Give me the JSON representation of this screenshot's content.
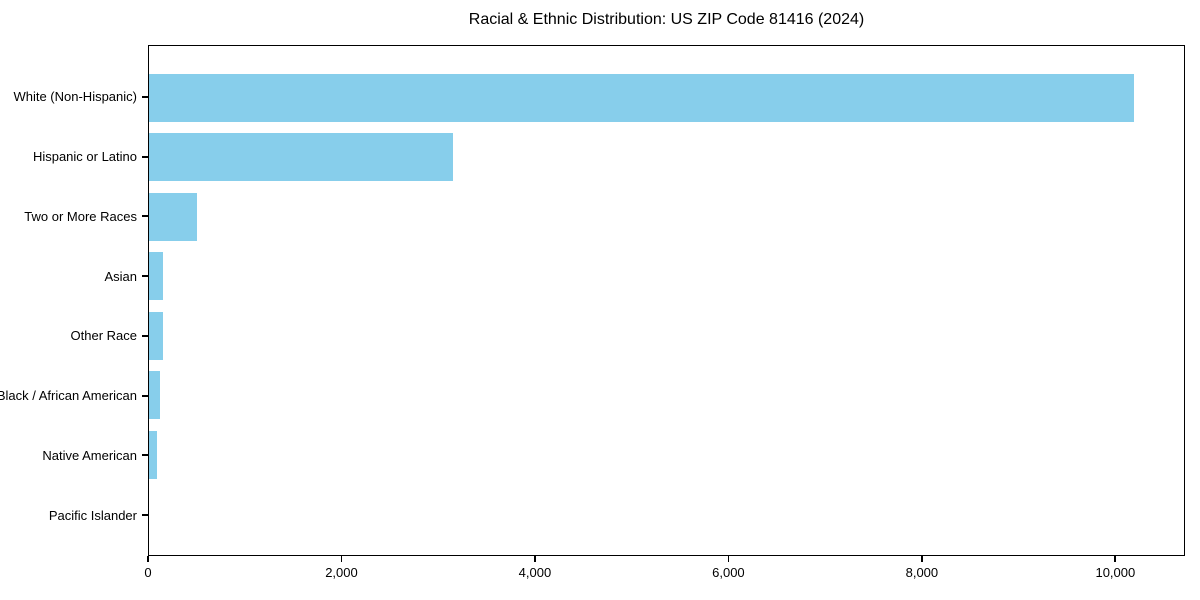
{
  "figure": {
    "background_color": "#ffffff",
    "spine_color": "#000000",
    "text_color": "#000000"
  },
  "chart_data": {
    "type": "bar",
    "orientation": "horizontal",
    "title": "Racial & Ethnic Distribution: US ZIP Code 81416 (2024)",
    "categories": [
      "White (Non-Hispanic)",
      "Hispanic or Latino",
      "Two or More Races",
      "Asian",
      "Other Race",
      "Black / African American",
      "Native American",
      "Pacific Islander"
    ],
    "values": [
      10200,
      3150,
      500,
      150,
      140,
      115,
      80,
      0
    ],
    "bar_color": "#87CEEB",
    "xlabel": "",
    "ylabel": "",
    "xlim": [
      0,
      10720
    ],
    "xticks": [
      0,
      2000,
      4000,
      6000,
      8000,
      10000
    ],
    "xtick_labels": [
      "0",
      "2,000",
      "4,000",
      "6,000",
      "8,000",
      "10,000"
    ],
    "grid": false,
    "legend": null
  }
}
